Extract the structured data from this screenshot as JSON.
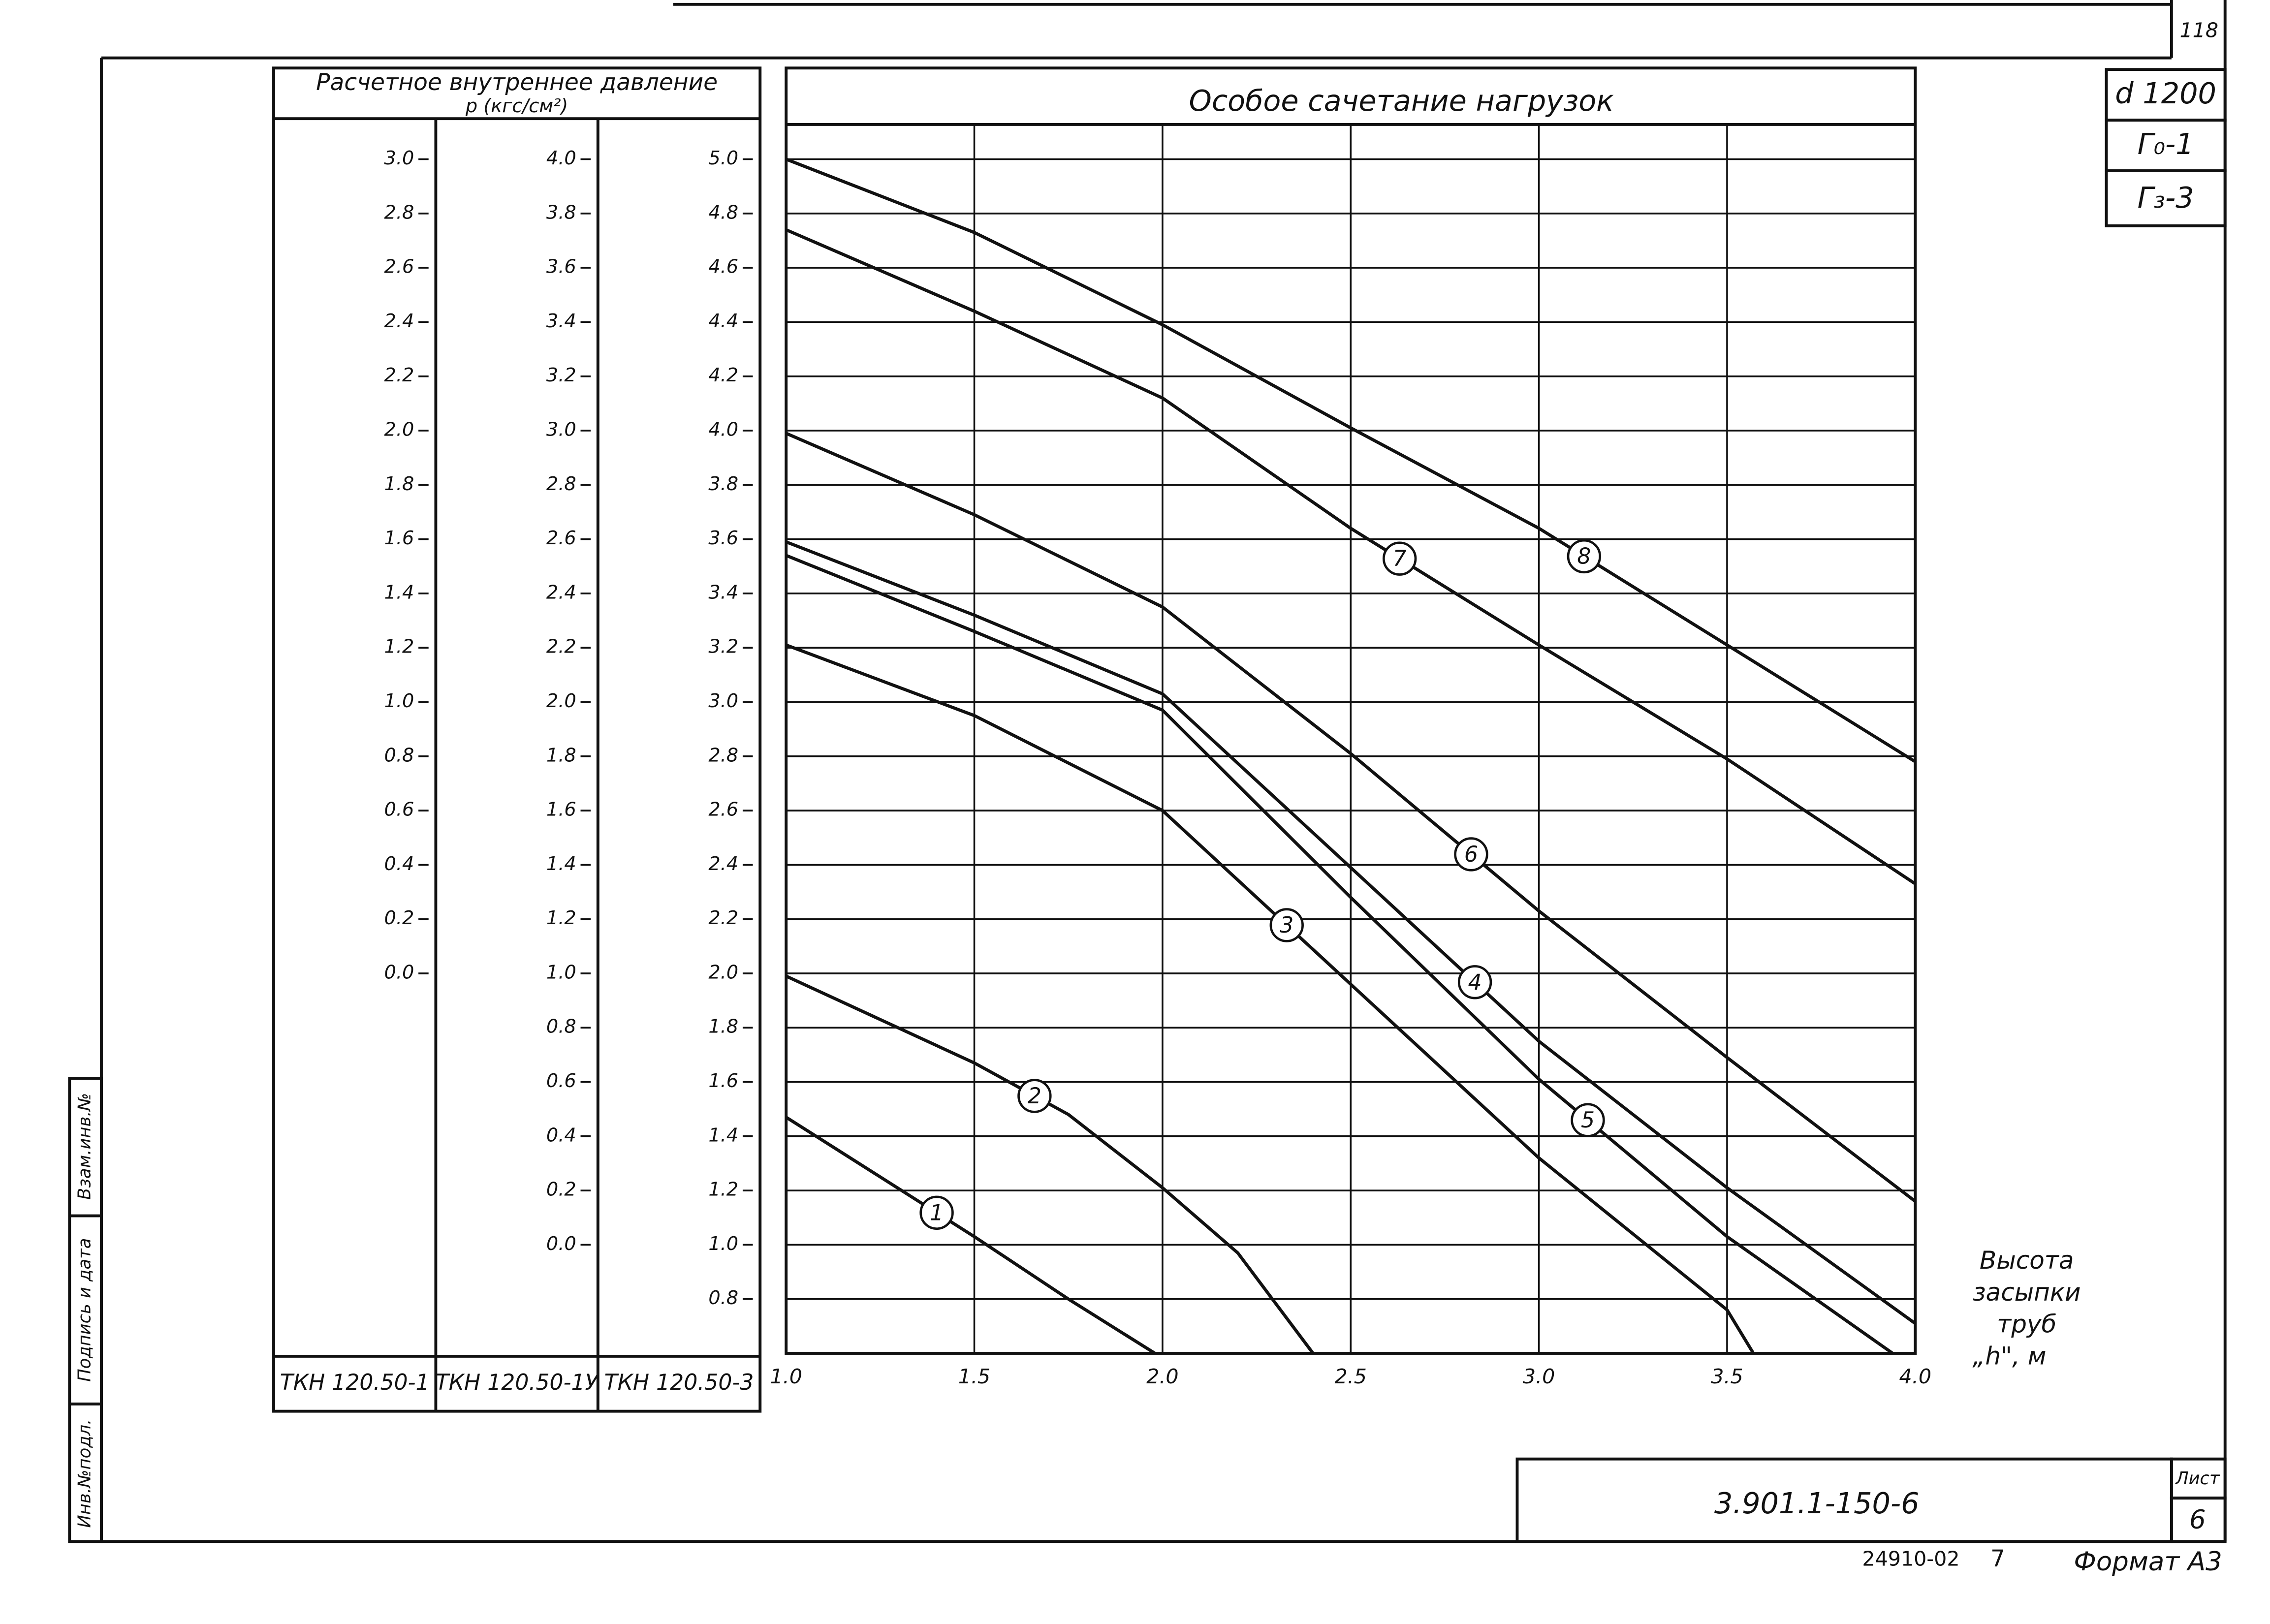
{
  "sheet": {
    "page_number": "118",
    "diameter": "d 1200",
    "ground_1": "Г₀-1",
    "ground_2": "Г₃-3",
    "table_header": "Расчетное внутреннее давление",
    "table_unit": "р (кгс/см²)",
    "document_code": "3.901.1-150-6",
    "sheet_label": "Лист",
    "sheet_number": "6",
    "archive_number": "24910-02",
    "copy_number": "7",
    "format": "Формат А3",
    "stamp": [
      "Инв.№подл.",
      "Подпись и дата",
      "Взам.инв.№"
    ]
  },
  "chart_data": {
    "type": "line",
    "title": "Особое сачетание нагрузок",
    "xlabel": [
      "Высота",
      "засыпки",
      "труб",
      "„h\", м"
    ],
    "xlim": [
      1,
      4
    ],
    "xticks": [
      {
        "value": 1,
        "label": "1.0"
      },
      1.5,
      {
        "value": 2,
        "label": "2.0"
      },
      2.5,
      {
        "value": 3,
        "label": "3.0"
      },
      3.5,
      {
        "value": 4,
        "label": "4.0"
      }
    ],
    "grid": true,
    "scales": [
      {
        "name": "ТКН 120.50-1",
        "ylim": [
          -1.4,
          3.0
        ],
        "yticks": [
          {
            "value": 3,
            "label": "3.0"
          },
          2.8,
          2.6,
          2.4,
          2.2,
          {
            "value": 2,
            "label": "2.0"
          },
          1.8,
          1.6,
          1.4,
          1.2,
          {
            "value": 1,
            "label": "1.0"
          },
          0.8,
          0.6,
          0.4,
          0.2,
          {
            "value": 0,
            "label": "0.0"
          }
        ]
      },
      {
        "name": "ТКН 120.50-1У",
        "ylim": [
          -0.4,
          4.0
        ],
        "yticks": [
          {
            "value": 4,
            "label": "4.0"
          },
          3.8,
          3.6,
          3.4,
          3.2,
          {
            "value": 3,
            "label": "3.0"
          },
          2.8,
          2.6,
          2.4,
          2.2,
          {
            "value": 2,
            "label": "2.0"
          },
          1.8,
          1.6,
          1.4,
          1.2,
          {
            "value": 1,
            "label": "1.0"
          },
          0.8,
          0.6,
          0.4,
          0.2,
          {
            "value": 0,
            "label": "0.0"
          }
        ]
      },
      {
        "name": "ТКН 120.50-3",
        "ylim": [
          0.6,
          5.0
        ],
        "yticks": [
          {
            "value": 5,
            "label": "5.0"
          },
          4.8,
          4.6,
          4.4,
          4.2,
          {
            "value": 4,
            "label": "4.0"
          },
          3.8,
          3.6,
          3.4,
          3.2,
          {
            "value": 3,
            "label": "3.0"
          },
          2.8,
          2.6,
          2.4,
          2.2,
          {
            "value": 2,
            "label": "2.0"
          },
          1.8,
          1.6,
          1.4,
          1.2,
          {
            "value": 1,
            "label": "1.0"
          },
          0.8
        ]
      }
    ],
    "series": [
      {
        "name": "1",
        "color": "#111111",
        "x": [
          1,
          1.5,
          1.75,
          1.98
        ],
        "values": [
          1.47,
          1.03,
          0.8,
          0.6
        ]
      },
      {
        "name": "2",
        "color": "#111111",
        "x": [
          1,
          1.5,
          1.75,
          2,
          2.2,
          2.4
        ],
        "values": [
          1.99,
          1.67,
          1.48,
          1.21,
          0.97,
          0.6
        ]
      },
      {
        "name": "3",
        "color": "#111111",
        "x": [
          1,
          1.5,
          2,
          2.5,
          3,
          3.5,
          3.57
        ],
        "values": [
          3.21,
          2.95,
          2.6,
          1.96,
          1.32,
          0.76,
          0.6
        ]
      },
      {
        "name": "4",
        "color": "#111111",
        "x": [
          1,
          1.5,
          2,
          2.5,
          3,
          3.5,
          4
        ],
        "values": [
          3.59,
          3.32,
          3.03,
          2.39,
          1.75,
          1.21,
          0.71
        ]
      },
      {
        "name": "5",
        "color": "#111111",
        "x": [
          1,
          1.5,
          2,
          2.5,
          3,
          3.5,
          3.94
        ],
        "values": [
          3.54,
          3.26,
          2.97,
          2.28,
          1.61,
          1.03,
          0.6
        ]
      },
      {
        "name": "6",
        "color": "#111111",
        "x": [
          1,
          1.5,
          2,
          2.5,
          3,
          3.5,
          4
        ],
        "values": [
          3.99,
          3.69,
          3.35,
          2.81,
          2.23,
          1.69,
          1.16
        ]
      },
      {
        "name": "7",
        "color": "#111111",
        "x": [
          1,
          1.5,
          2,
          2.5,
          3,
          3.5,
          4
        ],
        "values": [
          4.74,
          4.44,
          4.12,
          3.64,
          3.21,
          2.79,
          2.33
        ]
      },
      {
        "name": "8",
        "color": "#111111",
        "x": [
          1,
          1.5,
          2,
          2.5,
          3,
          3.5,
          4
        ],
        "values": [
          5.0,
          4.73,
          4.39,
          4.01,
          3.64,
          3.21,
          2.78
        ]
      }
    ]
  }
}
